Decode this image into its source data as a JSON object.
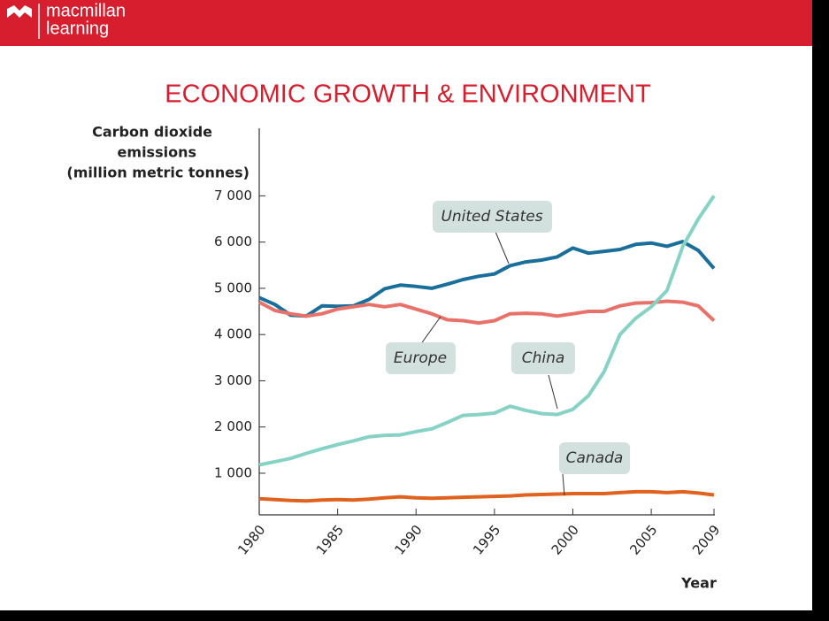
{
  "header": {
    "brand_line1": "macmillan",
    "brand_line2": "learning"
  },
  "chart_data": {
    "type": "line",
    "title": "ECONOMIC GROWTH & ENVIRONMENT",
    "ylabel": [
      "Carbon dioxide",
      "emissions",
      "(million metric tonnes)"
    ],
    "xlabel": "Year",
    "x": [
      1980,
      1981,
      1982,
      1983,
      1984,
      1985,
      1986,
      1987,
      1988,
      1989,
      1990,
      1991,
      1992,
      1993,
      1994,
      1995,
      1996,
      1997,
      1998,
      1999,
      2000,
      2001,
      2002,
      2003,
      2004,
      2005,
      2006,
      2007,
      2008,
      2009
    ],
    "series": [
      {
        "name": "United States",
        "color": "#1a6e9b",
        "values": [
          4800,
          4650,
          4420,
          4400,
          4620,
          4610,
          4620,
          4760,
          4990,
          5070,
          5040,
          5000,
          5090,
          5190,
          5260,
          5310,
          5490,
          5570,
          5610,
          5680,
          5870,
          5760,
          5800,
          5840,
          5950,
          5980,
          5910,
          6010,
          5820,
          5430
        ]
      },
      {
        "name": "Europe",
        "color": "#e8726a",
        "values": [
          4700,
          4520,
          4450,
          4400,
          4450,
          4550,
          4600,
          4650,
          4600,
          4650,
          4550,
          4450,
          4320,
          4300,
          4250,
          4300,
          4450,
          4460,
          4450,
          4400,
          4450,
          4500,
          4500,
          4620,
          4680,
          4690,
          4720,
          4700,
          4620,
          4300
        ]
      },
      {
        "name": "China",
        "color": "#86d3c5",
        "values": [
          1180,
          1250,
          1320,
          1430,
          1530,
          1620,
          1700,
          1790,
          1820,
          1830,
          1900,
          1960,
          2100,
          2250,
          2270,
          2300,
          2450,
          2360,
          2290,
          2270,
          2380,
          2680,
          3200,
          4000,
          4350,
          4600,
          4950,
          5900,
          6500,
          7000
        ]
      },
      {
        "name": "Canada",
        "color": "#e0621e",
        "values": [
          450,
          430,
          410,
          400,
          420,
          430,
          420,
          440,
          470,
          490,
          470,
          460,
          470,
          480,
          490,
          500,
          510,
          530,
          540,
          550,
          560,
          560,
          560,
          580,
          600,
          600,
          580,
          600,
          570,
          530
        ]
      }
    ],
    "xlim": [
      1980,
      2009
    ],
    "xticks": [
      1980,
      1985,
      1990,
      1995,
      2000,
      2005,
      2009
    ],
    "ylim": [
      100,
      8500
    ],
    "yticks": [
      {
        "value": 1000,
        "label": "1 000"
      },
      {
        "value": 2000,
        "label": "2 000"
      },
      {
        "value": 3000,
        "label": "3 000"
      },
      {
        "value": 4000,
        "label": "4 000"
      },
      {
        "value": 5000,
        "label": "5 000"
      },
      {
        "value": 6000,
        "label": "6 000"
      },
      {
        "value": 7000,
        "label": "7 000"
      }
    ]
  }
}
